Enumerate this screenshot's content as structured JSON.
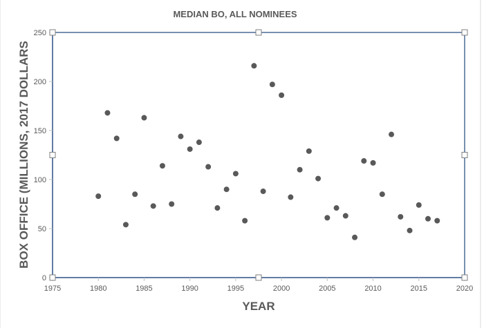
{
  "chart_data": {
    "type": "scatter",
    "title": "MEDIAN BO, ALL NOMINEES",
    "xlabel": "YEAR",
    "ylabel": "BOX OFFICE (MILLIONS, 2017 DOLLARS",
    "xlim": [
      1975,
      2020
    ],
    "ylim": [
      0,
      250
    ],
    "xticks": [
      1975,
      1980,
      1985,
      1990,
      1995,
      2000,
      2005,
      2010,
      2015,
      2020
    ],
    "yticks": [
      0,
      50,
      100,
      150,
      200,
      250
    ],
    "grid": false,
    "legend": "none",
    "marker_color": "#595959",
    "selection_color": "#4a6a96",
    "points": [
      {
        "x": 1980,
        "y": 83
      },
      {
        "x": 1981,
        "y": 168
      },
      {
        "x": 1982,
        "y": 142
      },
      {
        "x": 1983,
        "y": 54
      },
      {
        "x": 1984,
        "y": 85
      },
      {
        "x": 1985,
        "y": 163
      },
      {
        "x": 1986,
        "y": 73
      },
      {
        "x": 1987,
        "y": 114
      },
      {
        "x": 1988,
        "y": 75
      },
      {
        "x": 1989,
        "y": 144
      },
      {
        "x": 1990,
        "y": 131
      },
      {
        "x": 1991,
        "y": 138
      },
      {
        "x": 1992,
        "y": 113
      },
      {
        "x": 1993,
        "y": 71
      },
      {
        "x": 1994,
        "y": 90
      },
      {
        "x": 1995,
        "y": 106
      },
      {
        "x": 1996,
        "y": 58
      },
      {
        "x": 1997,
        "y": 216
      },
      {
        "x": 1998,
        "y": 88
      },
      {
        "x": 1999,
        "y": 197
      },
      {
        "x": 2000,
        "y": 186
      },
      {
        "x": 2001,
        "y": 82
      },
      {
        "x": 2002,
        "y": 110
      },
      {
        "x": 2003,
        "y": 129
      },
      {
        "x": 2004,
        "y": 101
      },
      {
        "x": 2005,
        "y": 61
      },
      {
        "x": 2006,
        "y": 71
      },
      {
        "x": 2007,
        "y": 63
      },
      {
        "x": 2008,
        "y": 41
      },
      {
        "x": 2009,
        "y": 119
      },
      {
        "x": 2010,
        "y": 117
      },
      {
        "x": 2011,
        "y": 85
      },
      {
        "x": 2012,
        "y": 146
      },
      {
        "x": 2013,
        "y": 62
      },
      {
        "x": 2014,
        "y": 48
      },
      {
        "x": 2015,
        "y": 74
      },
      {
        "x": 2016,
        "y": 60
      },
      {
        "x": 2017,
        "y": 58
      }
    ]
  }
}
